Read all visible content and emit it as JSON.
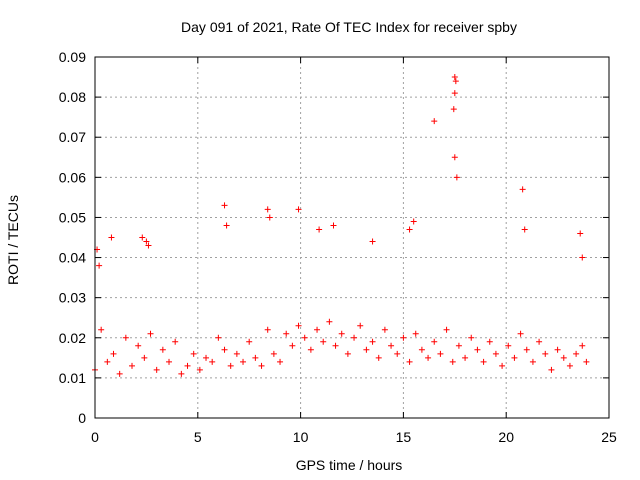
{
  "chart_data": {
    "type": "scatter",
    "title": "Day 091 of 2021, Rate Of TEC Index for receiver spby",
    "xlabel": "GPS time / hours",
    "ylabel": "ROTI / TECUs",
    "xlim": [
      0,
      25
    ],
    "ylim": [
      0,
      0.09
    ],
    "xticks": [
      0,
      5,
      10,
      15,
      20,
      25
    ],
    "xtick_labels": [
      "0",
      "5",
      "10",
      "15",
      "20",
      "25"
    ],
    "yticks": [
      0,
      0.01,
      0.02,
      0.03,
      0.04,
      0.05,
      0.06,
      0.07,
      0.08,
      0.09
    ],
    "ytick_labels": [
      "0",
      "0.01",
      "0.02",
      "0.03",
      "0.04",
      "0.05",
      "0.06",
      "0.07",
      "0.08",
      "0.09"
    ],
    "grid": true,
    "marker": "+",
    "marker_color": "#ff0000",
    "series": [
      {
        "name": "ROTI",
        "x": [
          0.0,
          0.3,
          0.6,
          0.9,
          1.2,
          1.5,
          1.8,
          2.1,
          2.4,
          2.7,
          3.0,
          3.3,
          3.6,
          3.9,
          4.2,
          4.5,
          4.8,
          5.1,
          5.4,
          5.7,
          6.0,
          6.3,
          6.6,
          6.9,
          7.2,
          7.5,
          7.8,
          8.1,
          8.4,
          8.7,
          9.0,
          9.3,
          9.6,
          9.9,
          10.2,
          10.5,
          10.8,
          11.1,
          11.4,
          11.7,
          12.0,
          12.3,
          12.6,
          12.9,
          13.2,
          13.5,
          13.8,
          14.1,
          14.4,
          14.7,
          15.0,
          15.3,
          15.6,
          15.9,
          16.2,
          16.5,
          16.8,
          17.1,
          17.4,
          17.7,
          18.0,
          18.3,
          18.6,
          18.9,
          19.2,
          19.5,
          19.8,
          20.1,
          20.4,
          20.7,
          21.0,
          21.3,
          21.6,
          21.9,
          22.2,
          22.5,
          22.8,
          23.1,
          23.4,
          23.7,
          23.9,
          0.1,
          0.2,
          0.8,
          2.3,
          2.5,
          2.6,
          6.3,
          6.4,
          8.4,
          8.5,
          9.9,
          10.9,
          11.6,
          13.5,
          15.3,
          15.5,
          16.5,
          17.5,
          17.55,
          17.5,
          17.45,
          17.5,
          17.6,
          20.8,
          20.9,
          23.6,
          23.7
        ],
        "y": [
          0.012,
          0.022,
          0.014,
          0.016,
          0.011,
          0.02,
          0.013,
          0.018,
          0.015,
          0.021,
          0.012,
          0.017,
          0.014,
          0.019,
          0.011,
          0.013,
          0.016,
          0.012,
          0.015,
          0.014,
          0.02,
          0.017,
          0.013,
          0.016,
          0.014,
          0.019,
          0.015,
          0.013,
          0.022,
          0.016,
          0.014,
          0.021,
          0.018,
          0.023,
          0.02,
          0.017,
          0.022,
          0.019,
          0.024,
          0.018,
          0.021,
          0.016,
          0.02,
          0.023,
          0.017,
          0.019,
          0.015,
          0.022,
          0.018,
          0.016,
          0.02,
          0.014,
          0.021,
          0.017,
          0.015,
          0.019,
          0.016,
          0.022,
          0.014,
          0.018,
          0.015,
          0.02,
          0.017,
          0.014,
          0.019,
          0.016,
          0.013,
          0.018,
          0.015,
          0.021,
          0.017,
          0.014,
          0.019,
          0.016,
          0.012,
          0.017,
          0.015,
          0.013,
          0.016,
          0.018,
          0.014,
          0.042,
          0.038,
          0.045,
          0.045,
          0.044,
          0.043,
          0.053,
          0.048,
          0.052,
          0.05,
          0.052,
          0.047,
          0.048,
          0.044,
          0.047,
          0.049,
          0.074,
          0.085,
          0.084,
          0.081,
          0.077,
          0.065,
          0.06,
          0.057,
          0.047,
          0.046,
          0.04
        ]
      }
    ]
  }
}
